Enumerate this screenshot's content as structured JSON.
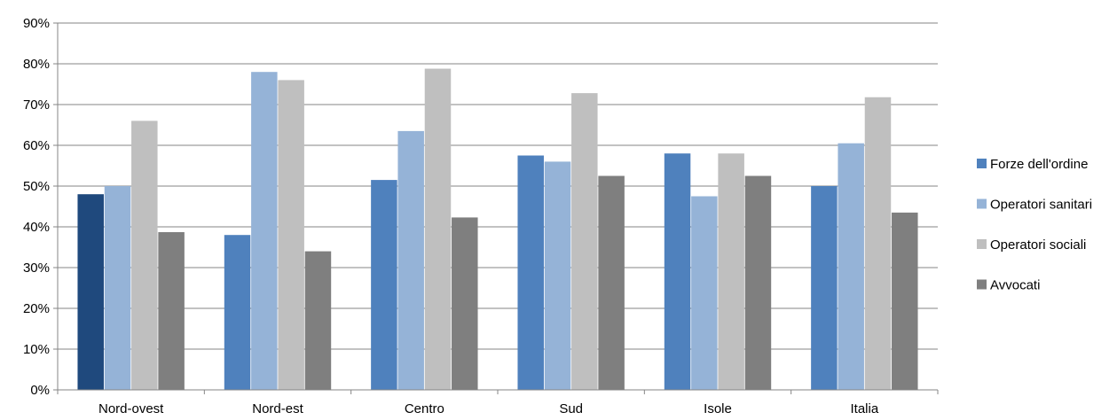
{
  "chart_data": {
    "type": "bar",
    "categories": [
      "Nord-ovest",
      "Nord-est",
      "Centro",
      "Sud",
      "Isole",
      "Italia"
    ],
    "series": [
      {
        "name": "Forze dell'ordine",
        "values": [
          48,
          38,
          51.5,
          57.5,
          58,
          50
        ],
        "color": "#4f81bd"
      },
      {
        "name": "Operatori sanitari",
        "values": [
          50,
          78,
          63.5,
          56,
          47.5,
          60.5
        ],
        "color": "#95b3d7"
      },
      {
        "name": "Operatori sociali",
        "values": [
          66,
          76,
          78.8,
          72.8,
          58,
          71.8
        ],
        "color": "#bfbfbf"
      },
      {
        "name": "Avvocati",
        "values": [
          38.7,
          34,
          42.3,
          52.5,
          52.5,
          43.5
        ],
        "color": "#7f7f7f"
      }
    ],
    "highlight": {
      "series_index": 0,
      "category_index": 0,
      "color": "#1f497d"
    },
    "ylim": [
      0,
      90
    ],
    "ytick_step": 10,
    "ytick_labels": [
      "0%",
      "10%",
      "20%",
      "30%",
      "40%",
      "50%",
      "60%",
      "70%",
      "80%",
      "90%"
    ],
    "grid": true,
    "grid_color": "#868686",
    "legend_position": "right"
  }
}
